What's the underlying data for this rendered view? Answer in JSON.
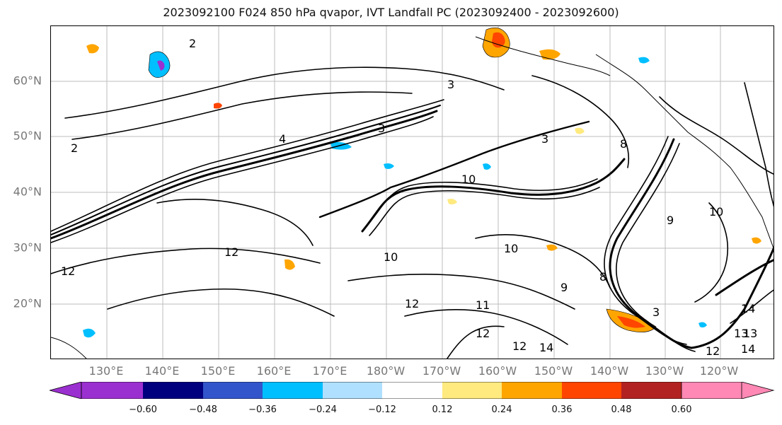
{
  "title": "2023092100 F024 850 hPa qvapor, IVT Landfall PC (2023092400 - 2023092600)",
  "map": {
    "lat_labels": [
      "60°N",
      "50°N",
      "40°N",
      "30°N",
      "20°N"
    ],
    "lon_labels": [
      "130°E",
      "140°E",
      "150°E",
      "160°E",
      "170°E",
      "180°W",
      "170°W",
      "160°W",
      "150°W",
      "140°W",
      "130°W",
      "120°W"
    ],
    "contour_labels": [
      "2",
      "3",
      "4",
      "3",
      "2",
      "3",
      "10",
      "10",
      "12",
      "10",
      "12",
      "12",
      "11",
      "8",
      "9",
      "12",
      "13",
      "14",
      "12",
      "14",
      "12",
      "10",
      "9",
      "8",
      "3",
      "14",
      "13"
    ]
  },
  "colorbar": {
    "colors": [
      "#9b30d0",
      "#00007f",
      "#3355cc",
      "#00bfff",
      "#b0e0ff",
      "#ffffff",
      "#ffea7f",
      "#ffa500",
      "#ff4500",
      "#b22222",
      "#ff88b4"
    ],
    "tick_labels": [
      "−0.60",
      "−0.48",
      "−0.36",
      "−0.24",
      "−0.12",
      "0.12",
      "0.24",
      "0.36",
      "0.48",
      "0.60"
    ]
  }
}
